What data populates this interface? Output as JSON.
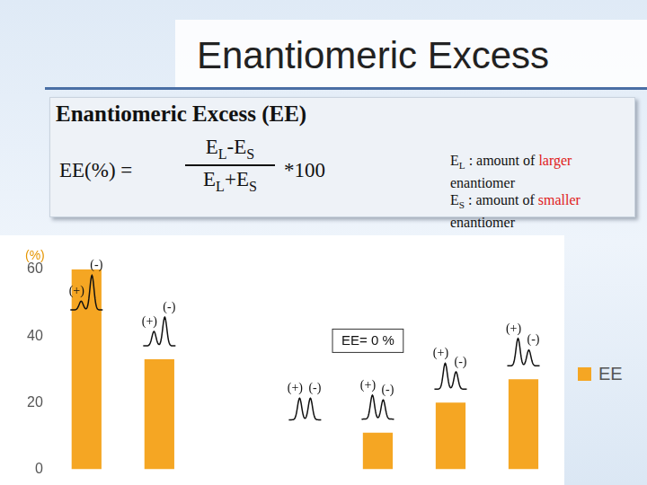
{
  "header": {
    "title": "Enantiomeric Excess"
  },
  "definition": {
    "heading": "Enantiomeric Excess (EE)",
    "lhs": "EE(%) =",
    "numerator": [
      {
        "text": "E",
        "sub": "L"
      },
      {
        "text": "-"
      },
      {
        "text": "E",
        "sub": "S"
      }
    ],
    "denominator": [
      {
        "text": "E",
        "sub": "L"
      },
      {
        "text": "+"
      },
      {
        "text": "E",
        "sub": "S"
      }
    ],
    "factor": "*100",
    "notes": [
      {
        "symbol": {
          "text": "E",
          "sub": "L"
        },
        "before": " : amount of ",
        "highlight": "larger",
        "after": " enantiomer"
      },
      {
        "symbol": {
          "text": "E",
          "sub": "S"
        },
        "before": " : amount of ",
        "highlight": "smaller",
        "after": " enantiomer"
      }
    ]
  },
  "chart_data": {
    "type": "bar",
    "ylabel": "(%)",
    "categories": [
      null,
      null,
      null,
      null,
      null,
      null,
      null
    ],
    "series": [
      {
        "name": "EE",
        "color": "#f5a623",
        "values": [
          60,
          33,
          null,
          0,
          11,
          20,
          27
        ]
      }
    ],
    "ylim": [
      0,
      60
    ],
    "yticks": [
      0,
      20,
      40,
      60
    ],
    "grid": false,
    "legend": "right",
    "tick_labels": "y",
    "chromatograms": [
      {
        "labels": [
          "(+)",
          "(-)"
        ],
        "major": "(-)"
      },
      {
        "labels": [
          "(+)",
          "(-)"
        ],
        "major": "(-)"
      },
      null,
      {
        "labels": [
          "(+)",
          "(-)"
        ],
        "major": null,
        "note": "EE= 0 %"
      },
      {
        "labels": [
          "(+)",
          "(-)"
        ],
        "major": "(+)"
      },
      {
        "labels": [
          "(+)",
          "(-)"
        ],
        "major": "(+)"
      },
      {
        "labels": [
          "(+)",
          "(-)"
        ],
        "major": "(+)"
      }
    ]
  }
}
